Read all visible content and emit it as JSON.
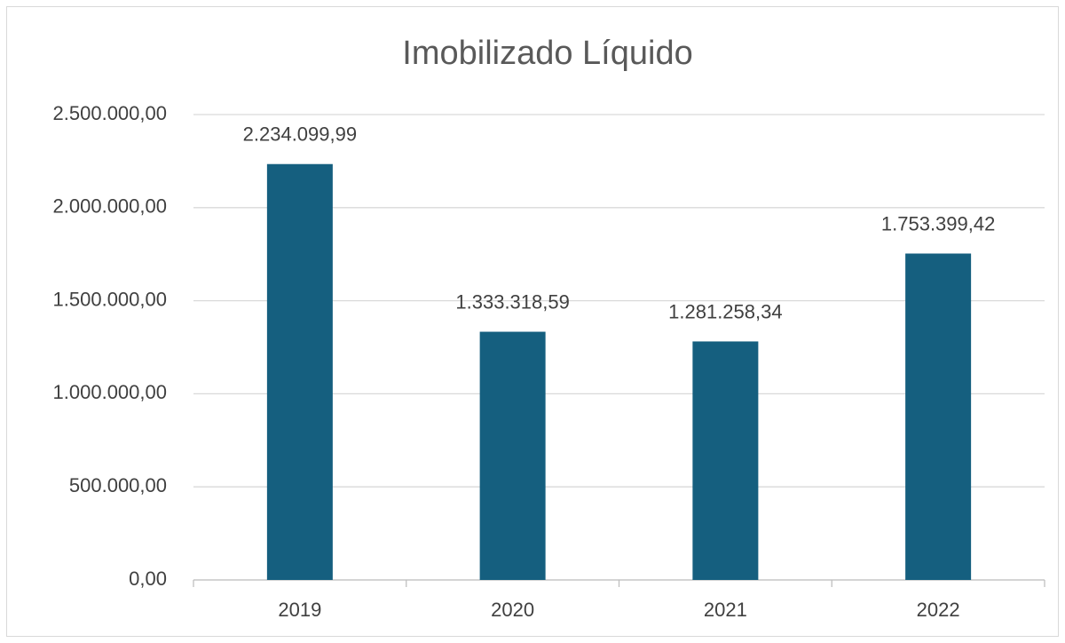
{
  "chart_data": {
    "type": "bar",
    "title": "Imobilizado Líquido",
    "categories": [
      "2019",
      "2020",
      "2021",
      "2022"
    ],
    "values": [
      2234099.99,
      1333318.59,
      1281258.34,
      1753399.42
    ],
    "value_labels": [
      "2.234.099,99",
      "1.333.318,59",
      "1.281.258,34",
      "1.753.399,42"
    ],
    "color": "#155f7f",
    "ylim": [
      0,
      2500000
    ],
    "yticks": [
      {
        "value": 0,
        "label": "0,00"
      },
      {
        "value": 500000,
        "label": "500.000,00"
      },
      {
        "value": 1000000,
        "label": "1.000.000,00"
      },
      {
        "value": 1500000,
        "label": "1.500.000,00"
      },
      {
        "value": 2000000,
        "label": "2.000.000,00"
      },
      {
        "value": 2500000,
        "label": "2.500.000,00"
      }
    ],
    "grid": true
  }
}
